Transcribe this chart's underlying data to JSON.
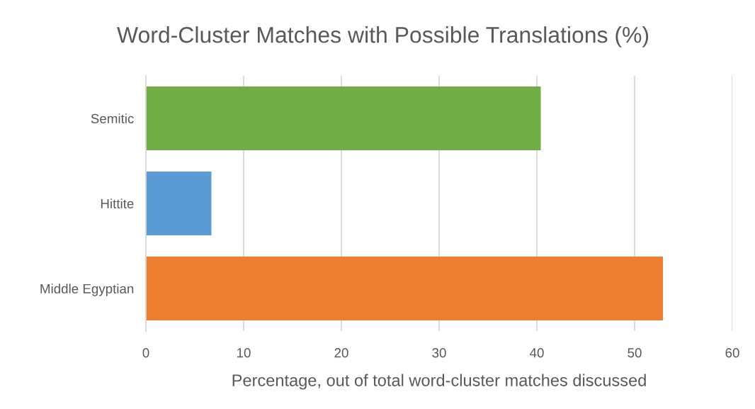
{
  "chart_data": {
    "type": "bar",
    "orientation": "horizontal",
    "title": "Word-Cluster Matches with Possible Translations (%)",
    "xlabel": "Percentage, out of total word-cluster matches discussed",
    "categories": [
      "Semitic",
      "Hittite",
      "Middle Egyptian"
    ],
    "values": [
      40.4,
      6.7,
      52.9
    ],
    "colors": [
      "#70ad47",
      "#5b9bd5",
      "#ed7d31"
    ],
    "xlim": [
      0,
      60
    ],
    "xticks": [
      0,
      10,
      20,
      30,
      40,
      50,
      60
    ],
    "grid": "x",
    "legend": false
  }
}
